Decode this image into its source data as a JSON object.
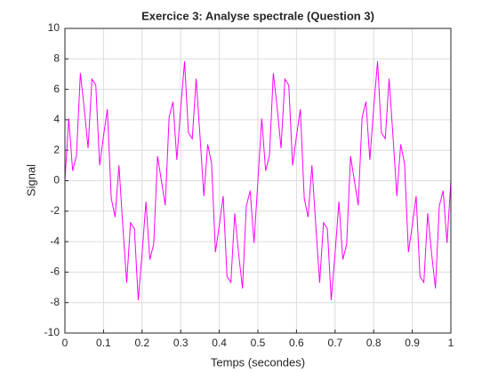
{
  "chart_data": {
    "type": "line",
    "title": "Exercice 3: Analyse spectrale (Question 3)",
    "x_label": "Temps (secondes)",
    "y_label": "Signal",
    "x": [
      0,
      0.01,
      0.02,
      0.03,
      0.04,
      0.05,
      0.06,
      0.07,
      0.08,
      0.09,
      0.1,
      0.11,
      0.12,
      0.13,
      0.14,
      0.15,
      0.16,
      0.17,
      0.18,
      0.19,
      0.2,
      0.21,
      0.22,
      0.23,
      0.24,
      0.25,
      0.26,
      0.27,
      0.28,
      0.29,
      0.3,
      0.31,
      0.32,
      0.33,
      0.34,
      0.35,
      0.36,
      0.37,
      0.38,
      0.39,
      0.4,
      0.41,
      0.42,
      0.43,
      0.44,
      0.45,
      0.46,
      0.47,
      0.48,
      0.49,
      0.5,
      0.51,
      0.52,
      0.53,
      0.54,
      0.55,
      0.56,
      0.57,
      0.58,
      0.59,
      0.6,
      0.61,
      0.62,
      0.63,
      0.64,
      0.65,
      0.66,
      0.67,
      0.68,
      0.69,
      0.7,
      0.71,
      0.72,
      0.73,
      0.74,
      0.75,
      0.76,
      0.77,
      0.78,
      0.79,
      0.8,
      0.81,
      0.82,
      0.83,
      0.84,
      0.85,
      0.86,
      0.87,
      0.88,
      0.89,
      0.9,
      0.91,
      0.92,
      0.93,
      0.94,
      0.95,
      0.96,
      0.97,
      0.98,
      0.99,
      1
    ],
    "series": [
      {
        "name": "Signal",
        "color": "#ff00ff",
        "values": [
          0,
          4.09,
          0.65,
          1.66,
          7.07,
          4.76,
          2.14,
          6.67,
          6.28,
          1.0,
          2.94,
          4.69,
          -1.13,
          -2.39,
          1.01,
          -2.94,
          -6.7,
          -2.76,
          -3.15,
          -7.84,
          -4.76,
          -1.37,
          -5.18,
          -4.17,
          1.61,
          0,
          -1.61,
          4.17,
          5.18,
          1.37,
          4.76,
          7.84,
          3.15,
          2.76,
          6.7,
          2.94,
          -1.01,
          2.39,
          1.13,
          -4.69,
          -2.94,
          -1.0,
          -6.28,
          -6.67,
          -2.14,
          -4.76,
          -7.07,
          -1.66,
          -0.65,
          -4.09,
          0,
          4.09,
          0.65,
          1.66,
          7.07,
          4.76,
          2.14,
          6.67,
          6.28,
          1.0,
          2.94,
          4.69,
          -1.13,
          -2.39,
          1.01,
          -2.94,
          -6.7,
          -2.76,
          -3.15,
          -7.84,
          -4.76,
          -1.37,
          -5.18,
          -4.17,
          1.61,
          0,
          -1.61,
          4.17,
          5.18,
          1.37,
          4.76,
          7.84,
          3.15,
          2.76,
          6.7,
          2.94,
          -1.01,
          2.39,
          1.13,
          -4.69,
          -2.94,
          -1.0,
          -6.28,
          -6.67,
          -2.14,
          -4.76,
          -7.07,
          -1.66,
          -0.65,
          -4.09,
          0
        ]
      }
    ],
    "xlim": [
      0,
      1
    ],
    "ylim": [
      -10,
      10
    ],
    "xticks": [
      0,
      0.1,
      0.2,
      0.3,
      0.4,
      0.5,
      0.6,
      0.7,
      0.8,
      0.9,
      1
    ],
    "yticks": [
      -10,
      -8,
      -6,
      -4,
      -2,
      0,
      2,
      4,
      6,
      8,
      10
    ],
    "grid": true
  }
}
